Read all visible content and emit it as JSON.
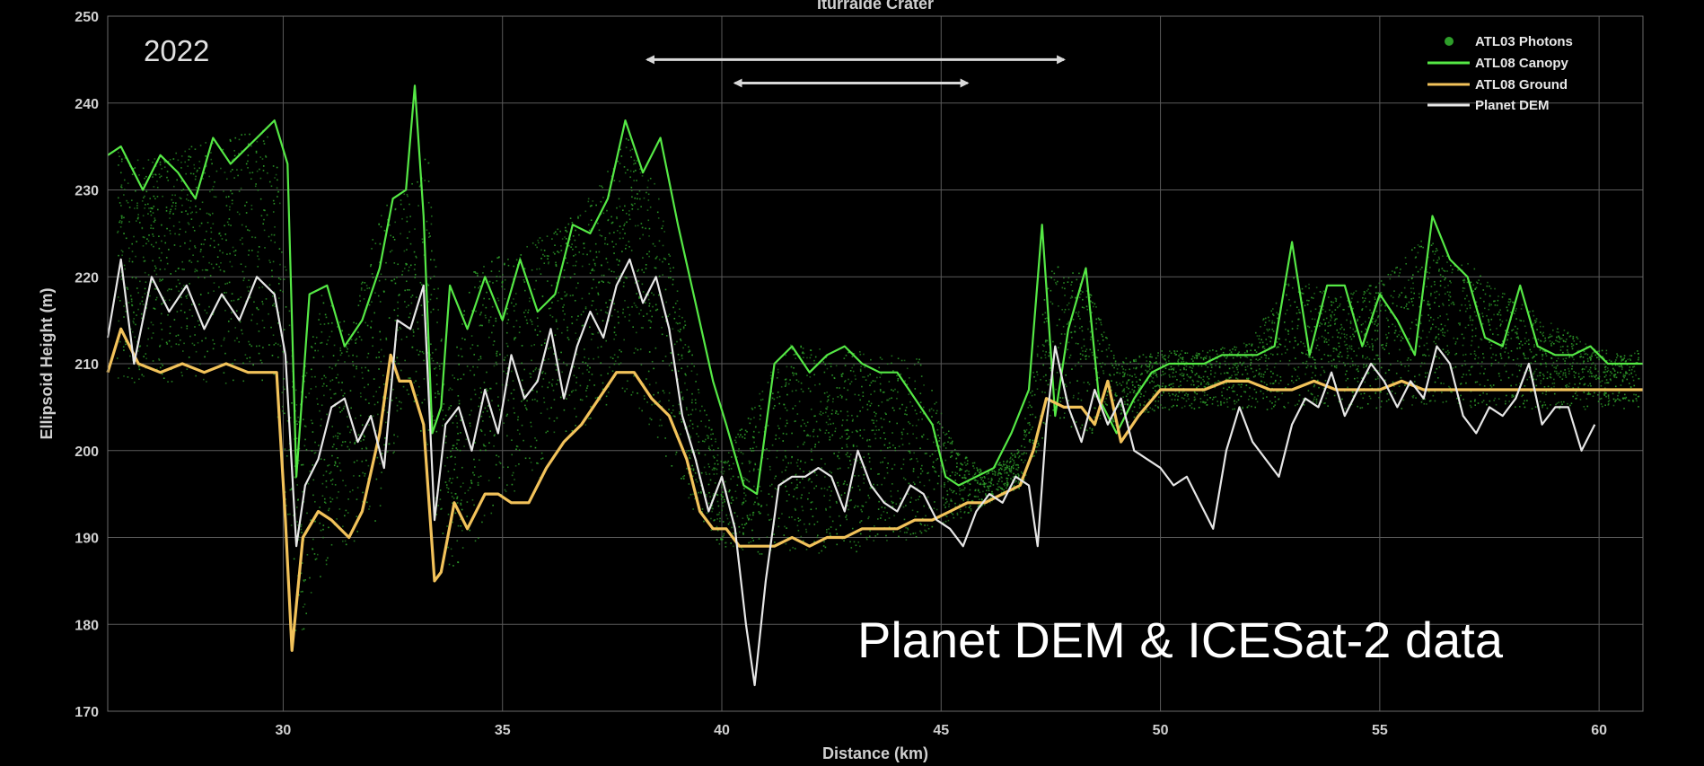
{
  "chart_data": {
    "type": "scatter",
    "title": "Iturralde Crater",
    "year_label": "2022",
    "caption": "Planet DEM & ICESat-2 data",
    "xlabel": "Distance (km)",
    "ylabel": "Ellipsoid Height (m)",
    "xlim": [
      26,
      61
    ],
    "ylim": [
      170,
      250
    ],
    "x_ticks": [
      30,
      35,
      40,
      45,
      50,
      55,
      60
    ],
    "y_ticks": [
      170,
      180,
      190,
      200,
      210,
      220,
      230,
      240,
      250
    ],
    "grid": true,
    "legend_position": "top-right",
    "colors": {
      "photons": "#2e9e2a",
      "canopy": "#55e845",
      "ground": "#f2c25a",
      "dem": "#e6e6e6",
      "arrows": "#d8d8d8"
    },
    "annotations": {
      "arrows": [
        {
          "x_start": 38.3,
          "x_end": 47.8,
          "y": 245
        },
        {
          "x_start": 40.3,
          "x_end": 45.6,
          "y": 242.3
        }
      ]
    },
    "series": [
      {
        "name": "ATL03 Photons",
        "style": "points",
        "x": [
          26.2,
          27,
          28,
          29,
          29.8,
          30.3,
          30.8,
          31.5,
          32.2,
          32.8,
          33.3,
          33.7,
          34.3,
          35,
          35.7,
          36.5,
          37.2,
          37.8,
          38.5,
          39.2,
          40,
          40.7,
          41.5,
          42.5,
          43.5,
          44.5,
          45.3,
          46,
          46.8,
          47.5,
          48.2,
          49,
          50,
          51,
          52,
          53,
          54,
          55,
          56,
          57,
          58,
          59,
          60,
          60.9
        ],
        "y_low": [
          209,
          209,
          209,
          209,
          209,
          178,
          186,
          190,
          193,
          208,
          200,
          185,
          190,
          195,
          197,
          202,
          206,
          208,
          203,
          195,
          190,
          189,
          189,
          189,
          190,
          191,
          193,
          195,
          197,
          205,
          203,
          204,
          206,
          206,
          206,
          206,
          206,
          206,
          206,
          206,
          206,
          206,
          206,
          206
        ],
        "y_high": [
          234,
          233,
          235,
          236,
          237,
          205,
          218,
          214,
          227,
          230,
          234,
          205,
          221,
          222,
          224,
          226,
          230,
          236,
          230,
          213,
          198,
          205,
          212,
          211,
          211,
          210,
          200,
          197,
          200,
          222,
          220,
          210,
          211,
          211,
          212,
          220,
          217,
          219,
          224,
          221,
          217,
          214,
          211,
          211
        ]
      },
      {
        "name": "ATL08 Canopy",
        "style": "line",
        "x": [
          26,
          26.3,
          26.8,
          27.2,
          27.6,
          28,
          28.4,
          28.8,
          29.2,
          29.6,
          29.8,
          30.1,
          30.3,
          30.6,
          31,
          31.4,
          31.8,
          32.2,
          32.5,
          32.8,
          33,
          33.2,
          33.4,
          33.6,
          33.8,
          34.2,
          34.6,
          35,
          35.4,
          35.8,
          36.2,
          36.6,
          37,
          37.4,
          37.8,
          38.2,
          38.6,
          39,
          39.4,
          39.8,
          40.1,
          40.5,
          40.8,
          41.2,
          41.6,
          42,
          42.4,
          42.8,
          43.2,
          43.6,
          44,
          44.4,
          44.8,
          45.1,
          45.4,
          45.8,
          46.2,
          46.6,
          47,
          47.3,
          47.6,
          47.9,
          48.3,
          48.6,
          49,
          49.4,
          49.8,
          50.2,
          50.6,
          51,
          51.4,
          51.8,
          52.2,
          52.6,
          53,
          53.4,
          53.8,
          54.2,
          54.6,
          55,
          55.4,
          55.8,
          56.2,
          56.6,
          57,
          57.4,
          57.8,
          58.2,
          58.6,
          59,
          59.4,
          59.8,
          60.2,
          60.6,
          61
        ],
        "y": [
          234,
          235,
          230,
          234,
          232,
          229,
          236,
          233,
          235,
          237,
          238,
          233,
          197,
          218,
          219,
          212,
          215,
          221,
          229,
          230,
          242,
          227,
          202,
          205,
          219,
          214,
          220,
          215,
          222,
          216,
          218,
          226,
          225,
          229,
          238,
          232,
          236,
          226,
          217,
          208,
          203,
          196,
          195,
          210,
          212,
          209,
          211,
          212,
          210,
          209,
          209,
          206,
          203,
          197,
          196,
          197,
          198,
          202,
          207,
          226,
          204,
          214,
          221,
          206,
          202,
          206,
          209,
          210,
          210,
          210,
          211,
          211,
          211,
          212,
          224,
          211,
          219,
          219,
          212,
          218,
          215,
          211,
          227,
          222,
          220,
          213,
          212,
          219,
          212,
          211,
          211,
          212,
          210,
          210,
          210
        ]
      },
      {
        "name": "ATL08 Ground",
        "style": "line",
        "x": [
          26,
          26.3,
          26.7,
          27.2,
          27.7,
          28.2,
          28.7,
          29.2,
          29.6,
          29.85,
          30.05,
          30.2,
          30.45,
          30.8,
          31.1,
          31.5,
          31.8,
          32.2,
          32.45,
          32.65,
          32.9,
          33.2,
          33.45,
          33.6,
          33.9,
          34.2,
          34.6,
          34.9,
          35.2,
          35.6,
          36,
          36.4,
          36.8,
          37.2,
          37.6,
          38,
          38.4,
          38.8,
          39.2,
          39.5,
          39.8,
          40.1,
          40.4,
          40.8,
          41.2,
          41.6,
          42,
          42.4,
          42.8,
          43.2,
          43.6,
          44,
          44.4,
          44.8,
          45.2,
          45.6,
          46,
          46.4,
          46.8,
          47.1,
          47.4,
          47.8,
          48.2,
          48.5,
          48.8,
          49.1,
          49.5,
          50,
          50.5,
          51,
          51.5,
          52,
          52.5,
          53,
          53.5,
          54,
          54.5,
          55,
          55.5,
          56,
          56.5,
          57,
          57.5,
          58,
          58.5,
          59,
          59.5,
          60,
          60.5,
          61
        ],
        "y": [
          209,
          214,
          210,
          209,
          210,
          209,
          210,
          209,
          209,
          209,
          192,
          177,
          190,
          193,
          192,
          190,
          193,
          202,
          211,
          208,
          208,
          203,
          185,
          186,
          194,
          191,
          195,
          195,
          194,
          194,
          198,
          201,
          203,
          206,
          209,
          209,
          206,
          204,
          199,
          193,
          191,
          191,
          189,
          189,
          189,
          190,
          189,
          190,
          190,
          191,
          191,
          191,
          192,
          192,
          193,
          194,
          194,
          195,
          196,
          200,
          206,
          205,
          205,
          203,
          208,
          201,
          204,
          207,
          207,
          207,
          208,
          208,
          207,
          207,
          208,
          207,
          207,
          207,
          208,
          207,
          207,
          207,
          207,
          207,
          207,
          207,
          207,
          207,
          207,
          207
        ]
      },
      {
        "name": "Planet DEM",
        "style": "line",
        "x": [
          26,
          26.3,
          26.6,
          27,
          27.4,
          27.8,
          28.2,
          28.6,
          29,
          29.4,
          29.8,
          30.05,
          30.3,
          30.5,
          30.8,
          31.1,
          31.4,
          31.7,
          32,
          32.3,
          32.6,
          32.9,
          33.2,
          33.45,
          33.7,
          34,
          34.3,
          34.6,
          34.9,
          35.2,
          35.5,
          35.8,
          36.1,
          36.4,
          36.7,
          37,
          37.3,
          37.6,
          37.9,
          38.2,
          38.5,
          38.8,
          39.1,
          39.4,
          39.7,
          40,
          40.3,
          40.55,
          40.75,
          41,
          41.3,
          41.6,
          41.9,
          42.2,
          42.5,
          42.8,
          43.1,
          43.4,
          43.7,
          44,
          44.3,
          44.6,
          44.9,
          45.2,
          45.5,
          45.8,
          46.1,
          46.4,
          46.7,
          47,
          47.2,
          47.4,
          47.6,
          47.9,
          48.2,
          48.5,
          48.8,
          49.1,
          49.4,
          49.7,
          50,
          50.3,
          50.6,
          50.9,
          51.2,
          51.5,
          51.8,
          52.1,
          52.4,
          52.7,
          53,
          53.3,
          53.6,
          53.9,
          54.2,
          54.5,
          54.8,
          55.1,
          55.4,
          55.7,
          56,
          56.3,
          56.6,
          56.9,
          57.2,
          57.5,
          57.8,
          58.1,
          58.4,
          58.7,
          59,
          59.3,
          59.6,
          59.9
        ],
        "y": [
          213,
          222,
          210,
          220,
          216,
          219,
          214,
          218,
          215,
          220,
          218,
          211,
          189,
          196,
          199,
          205,
          206,
          201,
          204,
          198,
          215,
          214,
          219,
          192,
          203,
          205,
          200,
          207,
          202,
          211,
          206,
          208,
          214,
          206,
          212,
          216,
          213,
          219,
          222,
          217,
          220,
          214,
          204,
          199,
          193,
          197,
          191,
          180,
          173,
          185,
          196,
          197,
          197,
          198,
          197,
          193,
          200,
          196,
          194,
          193,
          196,
          195,
          192,
          191,
          189,
          193,
          195,
          194,
          197,
          196,
          189,
          203,
          212,
          205,
          201,
          207,
          203,
          206,
          200,
          199,
          198,
          196,
          197,
          194,
          191,
          200,
          205,
          201,
          199,
          197,
          203,
          206,
          205,
          209,
          204,
          207,
          210,
          208,
          205,
          208,
          206,
          212,
          210,
          204,
          202,
          205,
          204,
          206,
          210,
          203,
          205,
          205,
          200,
          203
        ]
      }
    ]
  }
}
